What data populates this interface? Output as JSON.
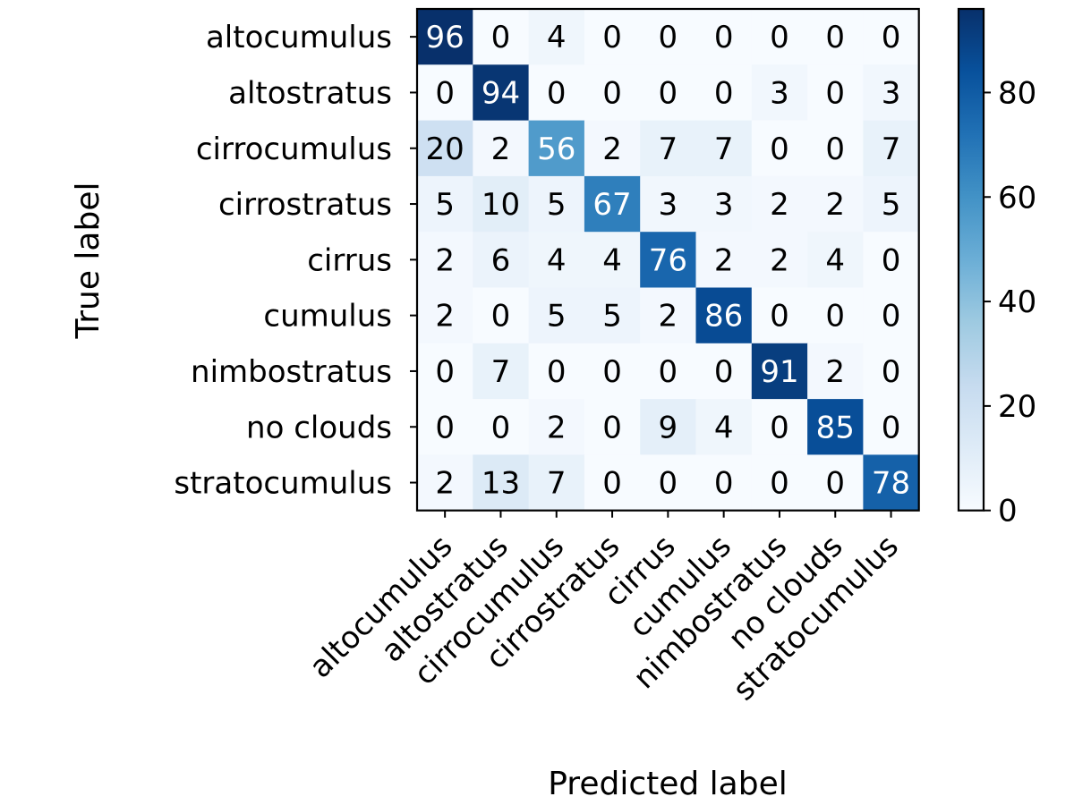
{
  "chart_data": {
    "type": "heatmap",
    "title": "",
    "xlabel": "Predicted label",
    "ylabel": "True label",
    "x_categories": [
      "altocumulus",
      "altostratus",
      "cirrocumulus",
      "cirrostratus",
      "cirrus",
      "cumulus",
      "nimbostratus",
      "no clouds",
      "stratocumulus"
    ],
    "y_categories": [
      "altocumulus",
      "altostratus",
      "cirrocumulus",
      "cirrostratus",
      "cirrus",
      "cumulus",
      "nimbostratus",
      "no clouds",
      "stratocumulus"
    ],
    "values": [
      [
        96,
        0,
        4,
        0,
        0,
        0,
        0,
        0,
        0
      ],
      [
        0,
        94,
        0,
        0,
        0,
        0,
        3,
        0,
        3
      ],
      [
        20,
        2,
        56,
        2,
        7,
        7,
        0,
        0,
        7
      ],
      [
        5,
        10,
        5,
        67,
        3,
        3,
        2,
        2,
        5
      ],
      [
        2,
        6,
        4,
        4,
        76,
        2,
        2,
        4,
        0
      ],
      [
        2,
        0,
        5,
        5,
        2,
        86,
        0,
        0,
        0
      ],
      [
        0,
        7,
        0,
        0,
        0,
        0,
        91,
        2,
        0
      ],
      [
        0,
        0,
        2,
        0,
        9,
        4,
        0,
        85,
        0
      ],
      [
        2,
        13,
        7,
        0,
        0,
        0,
        0,
        0,
        78
      ]
    ],
    "colormap": "Blues",
    "color_range": [
      0,
      96
    ],
    "colorbar_ticks": [
      0,
      20,
      40,
      60,
      80
    ],
    "grid": false,
    "text_color_dark": "#000000",
    "text_color_light": "#ffffff"
  }
}
